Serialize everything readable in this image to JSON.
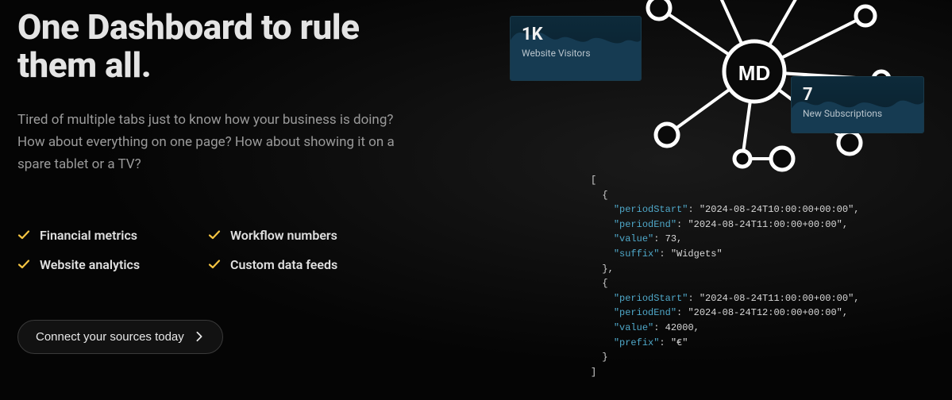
{
  "hero": {
    "headline": "One Dashboard to rule them all.",
    "subtext": "Tired of multiple tabs just to know how your business is doing? How about everything on one page? How about showing it on a spare tablet or a TV?",
    "cta_label": "Connect your sources today"
  },
  "features": [
    "Financial metrics",
    "Workflow numbers",
    "Website analytics",
    "Custom data feeds"
  ],
  "feature_check_color": "#f5c542",
  "cards": {
    "visitors": {
      "value": "1K",
      "label": "Website Visitors"
    },
    "subs": {
      "value": "7",
      "label": "New Subscriptions"
    }
  },
  "card_style": {
    "bg_top": "#0d2a3a",
    "bg_bottom": "#0a1f2c",
    "border": "#1a3a4a",
    "spark_fill": "#163b52",
    "value_color": "#f0f0f0",
    "label_color": "#b8c4cc"
  },
  "network": {
    "center_label": "MD",
    "node_stroke": "#ffffff",
    "node_fill": "#0a0a0a",
    "edge_color": "#ffffff"
  },
  "code": {
    "key_color": "#4fa8c9",
    "value_color": "#d8d8d8",
    "items": [
      {
        "periodStart": "2024-08-24T10:00:00+00:00",
        "periodEnd": "2024-08-24T11:00:00+00:00",
        "value": 73,
        "suffix": "Widgets"
      },
      {
        "periodStart": "2024-08-24T11:00:00+00:00",
        "periodEnd": "2024-08-24T12:00:00+00:00",
        "value": 42000,
        "prefix": "€"
      }
    ]
  },
  "colors": {
    "bg": "#0a0a0a",
    "text": "#e4e4e4",
    "muted": "#9a9a9a"
  }
}
